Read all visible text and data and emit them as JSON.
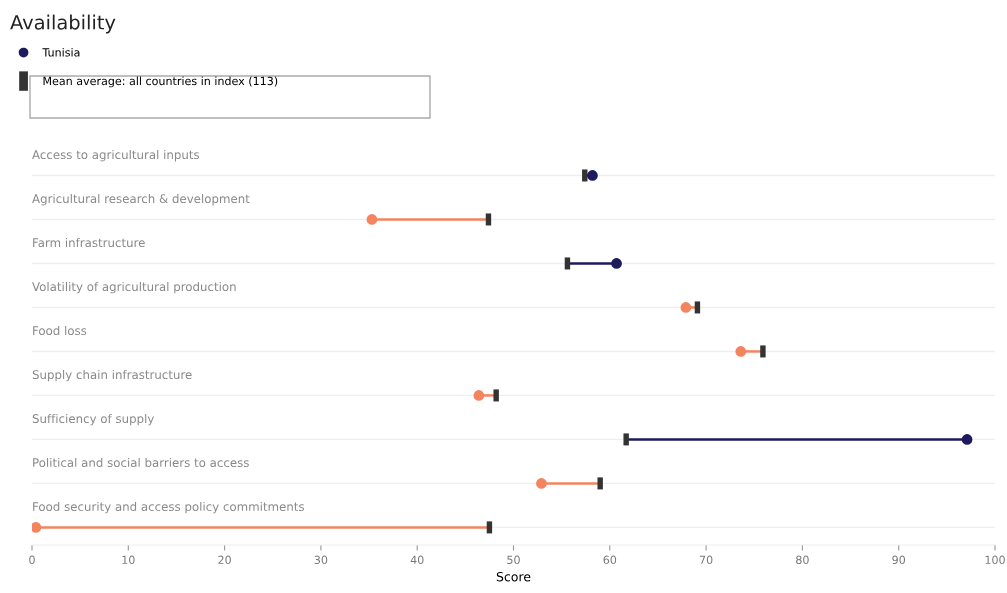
{
  "chart_data": {
    "type": "scatter",
    "title": "Availability",
    "xlabel": "Score",
    "categories": [
      "Access to agricultural inputs",
      "Agricultural research & development",
      "Farm infrastructure",
      "Volatility of agricultural production",
      "Food loss",
      "Supply chain infrastructure",
      "Sufficiency of supply",
      "Political and social barriers to access",
      "Food security and access policy commitments"
    ],
    "series": [
      {
        "name": "Tunisia",
        "color": "#1e1a5e",
        "marker": "circle",
        "colors": [
          "#1e1a5e",
          "#f4845f",
          "#1e1a5e",
          "#f4845f",
          "#f4845f",
          "#f4845f",
          "#1e1a5e",
          "#f4845f",
          "#f4845f"
        ],
        "values": [
          58.2,
          35.3,
          60.7,
          67.9,
          73.6,
          46.4,
          97.1,
          52.9,
          0.4
        ]
      },
      {
        "name": "Mean average: all countries in index (113)",
        "color": "#333333",
        "marker": "square",
        "values": [
          57.4,
          47.4,
          55.6,
          69.1,
          75.9,
          48.2,
          61.7,
          59.0,
          47.5
        ]
      }
    ],
    "xlim": [
      0,
      100
    ],
    "xticks": [
      0,
      10,
      20,
      30,
      40,
      50,
      60,
      70,
      80,
      90,
      100
    ],
    "orientation": "horizontal",
    "grid": "y",
    "legend": "top left"
  }
}
